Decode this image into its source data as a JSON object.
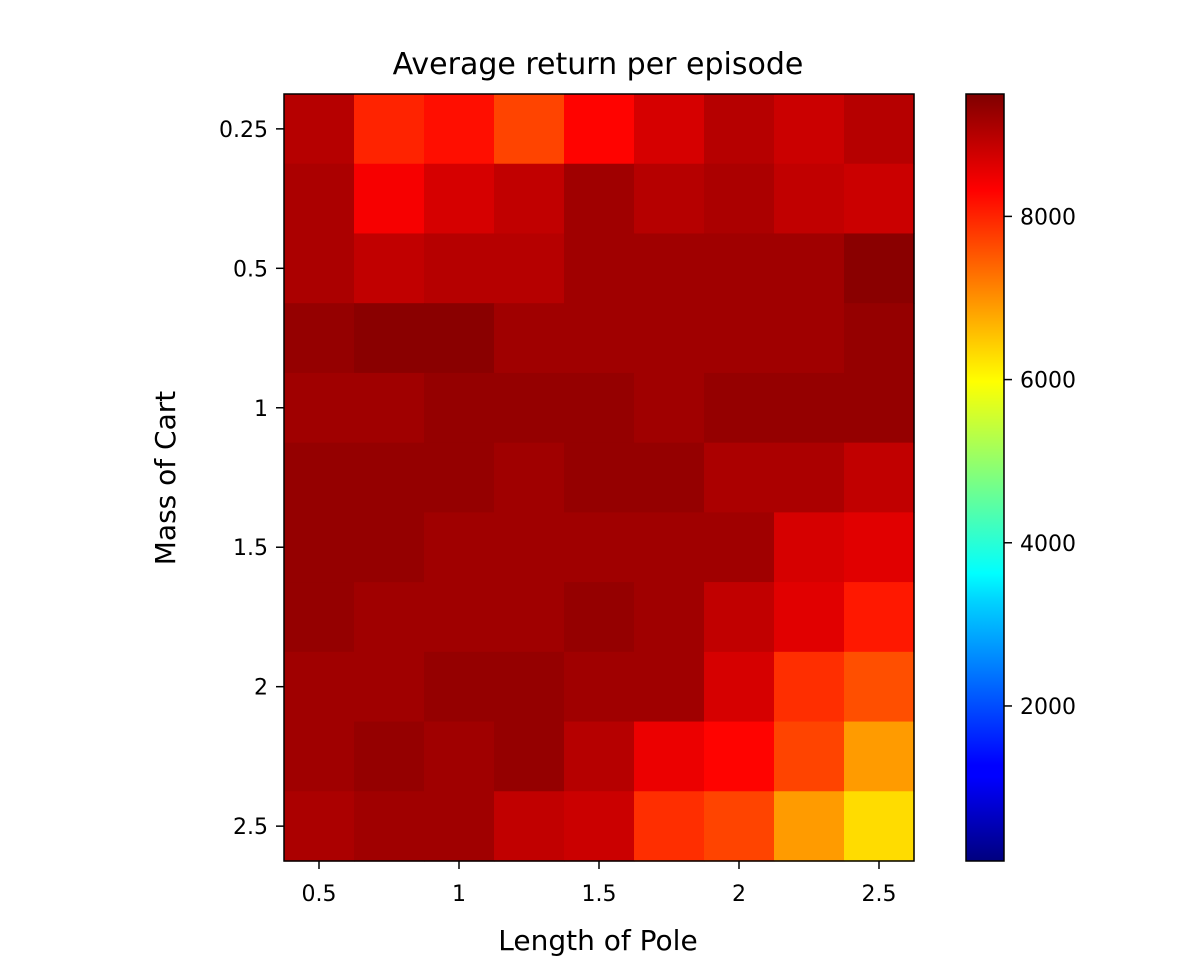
{
  "chart_data": {
    "type": "heatmap",
    "title": "Average return per episode",
    "xlabel": "Length of Pole",
    "ylabel": "Mass of Cart",
    "colormap": "jet",
    "vmin": 100,
    "vmax": 9500,
    "x_ticks": [
      {
        "value": 0.5,
        "label": "0.5"
      },
      {
        "value": 1.0,
        "label": "1"
      },
      {
        "value": 1.5,
        "label": "1.5"
      },
      {
        "value": 2.0,
        "label": "2"
      },
      {
        "value": 2.5,
        "label": "2.5"
      }
    ],
    "y_ticks": [
      {
        "value": 0.25,
        "label": "0.25"
      },
      {
        "value": 0.5,
        "label": "0.5"
      },
      {
        "value": 1.0,
        "label": "1"
      },
      {
        "value": 1.5,
        "label": "1.5"
      },
      {
        "value": 2.0,
        "label": "2"
      },
      {
        "value": 2.5,
        "label": "2.5"
      }
    ],
    "x": [
      0.5,
      0.75,
      1.0,
      1.25,
      1.5,
      1.75,
      2.0,
      2.25,
      2.5
    ],
    "y": [
      0.25,
      0.5,
      0.75,
      1.0,
      1.25,
      1.5,
      1.75,
      2.0,
      2.25,
      2.5,
      2.75
    ],
    "y_ticks_positions_note_rows": [
      0.25,
      0.5,
      1.0,
      1.5,
      2.0,
      2.5
    ],
    "values": [
      [
        9000,
        8000,
        8200,
        7700,
        8300,
        8700,
        9000,
        8800,
        9000
      ],
      [
        9100,
        8400,
        8700,
        8900,
        9200,
        9000,
        9100,
        8900,
        8800
      ],
      [
        9100,
        8900,
        9000,
        9000,
        9200,
        9200,
        9200,
        9200,
        9400
      ],
      [
        9300,
        9400,
        9400,
        9200,
        9200,
        9200,
        9200,
        9200,
        9300
      ],
      [
        9200,
        9200,
        9300,
        9300,
        9300,
        9200,
        9300,
        9300,
        9300
      ],
      [
        9300,
        9300,
        9300,
        9200,
        9300,
        9300,
        9100,
        9100,
        8900
      ],
      [
        9300,
        9300,
        9200,
        9200,
        9200,
        9200,
        9200,
        8700,
        8600
      ],
      [
        9300,
        9200,
        9200,
        9200,
        9300,
        9200,
        8900,
        8600,
        8100
      ],
      [
        9200,
        9200,
        9300,
        9300,
        9200,
        9200,
        8700,
        7900,
        7600
      ],
      [
        9200,
        9300,
        9200,
        9300,
        9000,
        8500,
        8300,
        7700,
        6900
      ],
      [
        9100,
        9200,
        9200,
        8900,
        8800,
        7900,
        7700,
        6900,
        6300
      ]
    ],
    "colorbar_ticks": [
      {
        "value": 2000,
        "label": "2000"
      },
      {
        "value": 4000,
        "label": "4000"
      },
      {
        "value": 6000,
        "label": "6000"
      },
      {
        "value": 8000,
        "label": "8000"
      }
    ]
  }
}
